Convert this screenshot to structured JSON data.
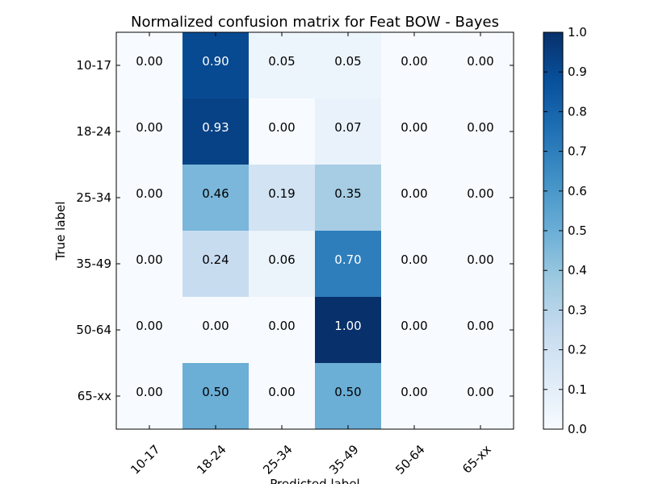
{
  "chart_data": {
    "type": "heatmap",
    "title": "Normalized confusion matrix for Feat BOW - Bayes",
    "xlabel": "Predicted label",
    "ylabel": "True label",
    "x_categories": [
      "10-17",
      "18-24",
      "25-34",
      "35-49",
      "50-64",
      "65-xx"
    ],
    "y_categories": [
      "10-17",
      "18-24",
      "25-34",
      "35-49",
      "50-64",
      "65-xx"
    ],
    "values": [
      [
        0.0,
        0.9,
        0.05,
        0.05,
        0.0,
        0.0
      ],
      [
        0.0,
        0.93,
        0.0,
        0.07,
        0.0,
        0.0
      ],
      [
        0.0,
        0.46,
        0.19,
        0.35,
        0.0,
        0.0
      ],
      [
        0.0,
        0.24,
        0.06,
        0.7,
        0.0,
        0.0
      ],
      [
        0.0,
        0.0,
        0.0,
        1.0,
        0.0,
        0.0
      ],
      [
        0.0,
        0.5,
        0.0,
        0.5,
        0.0,
        0.0
      ]
    ],
    "colormap": "Blues",
    "colormap_stops": [
      "#f7fbff",
      "#deebf7",
      "#c6dbef",
      "#9ecae1",
      "#6baed6",
      "#4292c6",
      "#2171b5",
      "#08519c",
      "#08306b"
    ],
    "colorbar": {
      "range": [
        0.0,
        1.0
      ],
      "ticks": [
        "0.0",
        "0.1",
        "0.2",
        "0.3",
        "0.4",
        "0.5",
        "0.6",
        "0.7",
        "0.8",
        "0.9",
        "1.0"
      ]
    },
    "grid": false
  }
}
